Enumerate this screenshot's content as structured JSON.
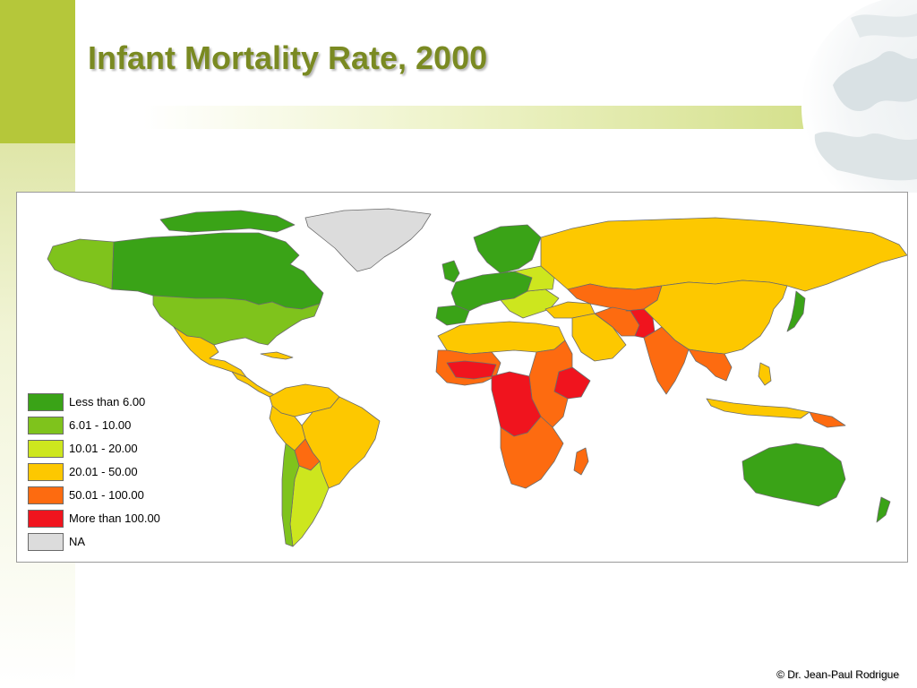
{
  "slide": {
    "title": "Infant Mortality Rate, 2000",
    "credit": "© Dr. Jean-Paul Rodrigue"
  },
  "legend": {
    "items": [
      {
        "label": "Less than 6.00",
        "color": "#3aa317"
      },
      {
        "label": "6.01 - 10.00",
        "color": "#7fc31c"
      },
      {
        "label": "10.01 - 20.00",
        "color": "#cde61e"
      },
      {
        "label": "20.01 - 50.00",
        "color": "#fdc800"
      },
      {
        "label": "50.01 - 100.00",
        "color": "#fd6b10"
      },
      {
        "label": "More than 100.00",
        "color": "#f0141e"
      },
      {
        "label": "NA",
        "color": "#dcdcdc"
      }
    ]
  },
  "theme": {
    "accent": "#b5c73a",
    "title_color": "#7a8a22",
    "border_color": "#6b6b6b"
  }
}
